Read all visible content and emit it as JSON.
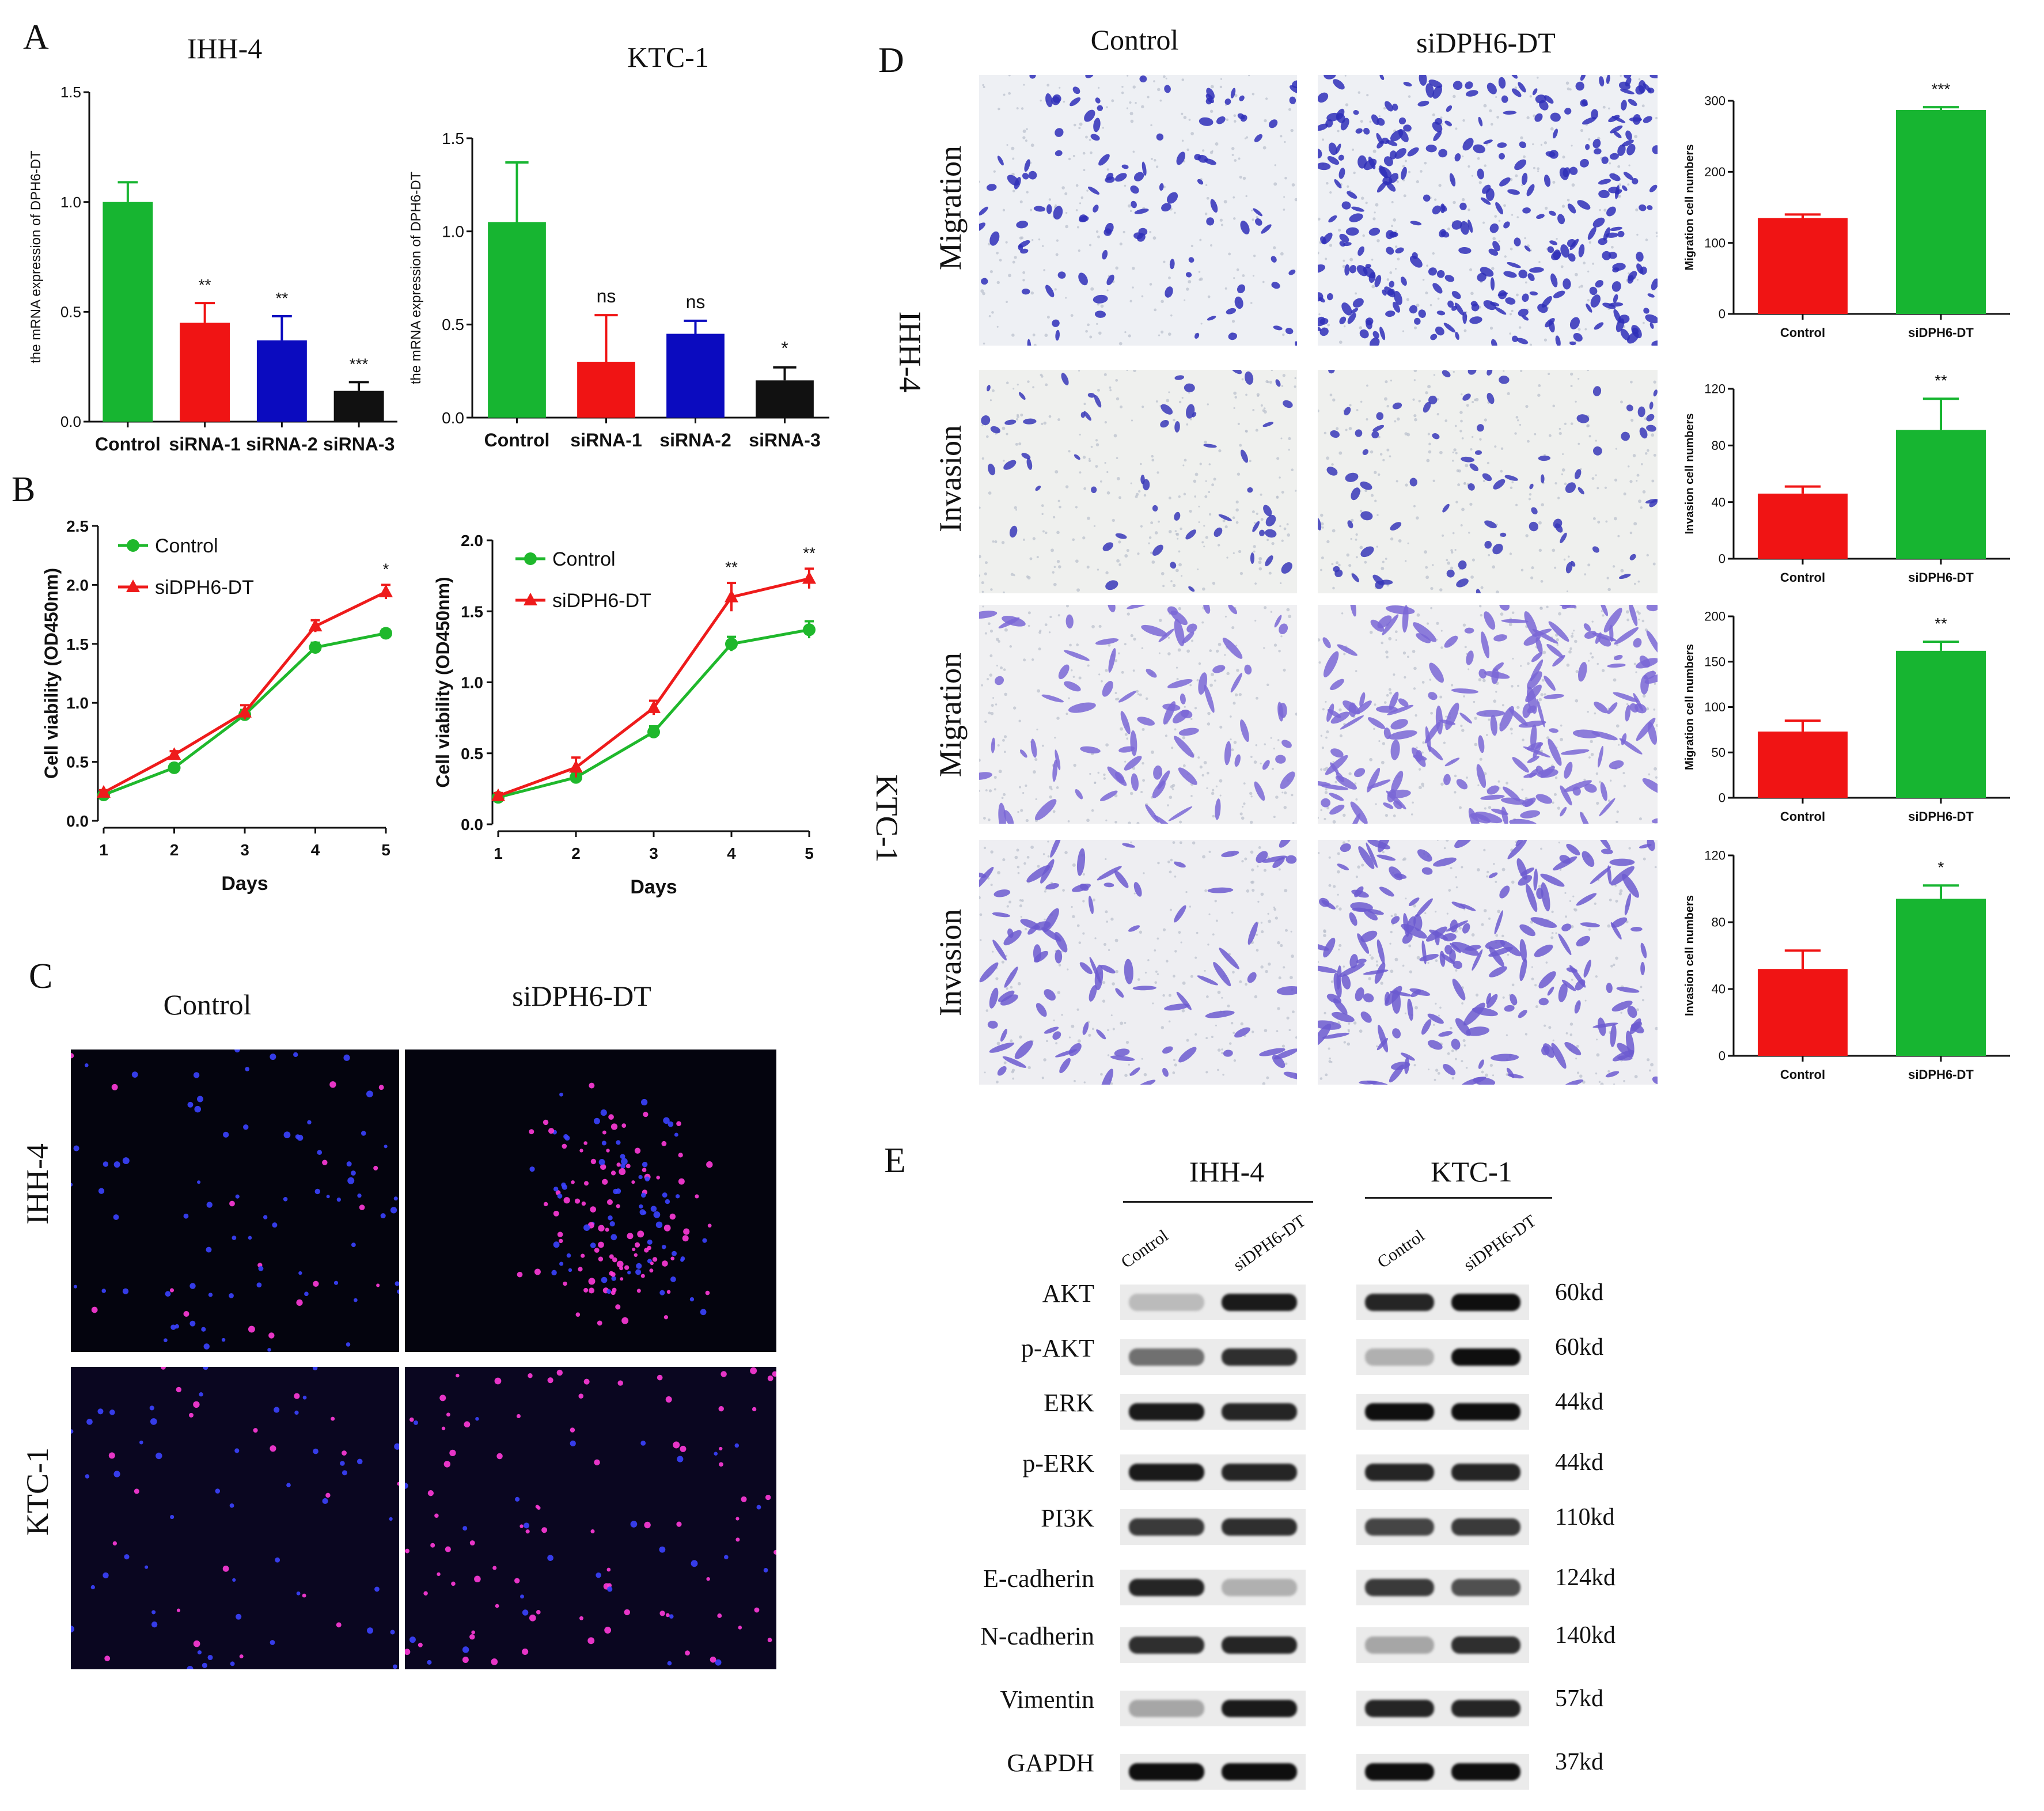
{
  "panel_letters": {
    "A": "A",
    "B": "B",
    "C": "C",
    "D": "D",
    "E": "E"
  },
  "colors": {
    "green": "#17b531",
    "red": "#f01414",
    "blue": "#0b0bbf",
    "black": "#111111",
    "line_green": "#1fb82c",
    "line_red": "#ee1b1b"
  },
  "panelA": {
    "left_title": "IHH-4",
    "right_title": "KTC-1"
  },
  "panelB": {
    "xlabel": "Days",
    "ylabel": "Cell viability (OD450nm)",
    "legend": [
      "Control",
      "siDPH6-DT"
    ]
  },
  "panelC": {
    "col_labels": [
      "Control",
      "siDPH6-DT"
    ],
    "row_labels": [
      "IHH-4",
      "KTC-1"
    ]
  },
  "panelD": {
    "col_labels": [
      "Control",
      "siDPH6-DT"
    ],
    "row_labels": [
      "Migration",
      "Invasion",
      "Migration",
      "Invasion"
    ],
    "cell_lines": [
      "IHH-4",
      "KTC-1"
    ]
  },
  "panelE": {
    "cell_lines": [
      "IHH-4",
      "KTC-1"
    ],
    "lanes": [
      "Control",
      "siDPH6-DT",
      "Control",
      "siDPH6-DT"
    ],
    "proteins": [
      {
        "name": "AKT",
        "kd": "60kd"
      },
      {
        "name": "p-AKT",
        "kd": "60kd"
      },
      {
        "name": "ERK",
        "kd": "44kd"
      },
      {
        "name": "p-ERK",
        "kd": "44kd"
      },
      {
        "name": "PI3K",
        "kd": "110kd"
      },
      {
        "name": "E-cadherin",
        "kd": "124kd"
      },
      {
        "name": "N-cadherin",
        "kd": "140kd"
      },
      {
        "name": "Vimentin",
        "kd": "57kd"
      },
      {
        "name": "GAPDH",
        "kd": "37kd"
      }
    ]
  },
  "chart_data": [
    {
      "id": "A-IHH-4",
      "type": "bar",
      "title": "IHH-4",
      "ylabel": "the mRNA expression of DPH6-DT",
      "categories": [
        "Control",
        "siRNA-1",
        "siRNA-2",
        "siRNA-3"
      ],
      "values": [
        1.0,
        0.45,
        0.37,
        0.14
      ],
      "errors": [
        0.09,
        0.09,
        0.11,
        0.04
      ],
      "annotations": [
        "",
        "**",
        "**",
        "***"
      ],
      "colors": [
        "#17b531",
        "#f01414",
        "#0b0bbf",
        "#111111"
      ],
      "ylim": [
        0,
        1.5
      ],
      "yticks": [
        "0.0",
        "0.5",
        "1.0",
        "1.5"
      ]
    },
    {
      "id": "A-KTC-1",
      "type": "bar",
      "title": "KTC-1",
      "ylabel": "the mRNA expression of DPH6-DT",
      "categories": [
        "Control",
        "siRNA-1",
        "siRNA-2",
        "siRNA-3"
      ],
      "values": [
        1.05,
        0.3,
        0.45,
        0.2
      ],
      "errors": [
        0.32,
        0.25,
        0.07,
        0.07
      ],
      "annotations": [
        "",
        "ns",
        "ns",
        "*"
      ],
      "colors": [
        "#17b531",
        "#f01414",
        "#0b0bbf",
        "#111111"
      ],
      "ylim": [
        0,
        1.5
      ],
      "yticks": [
        "0.0",
        "0.5",
        "1.0",
        "1.5"
      ]
    },
    {
      "id": "B-IHH-4",
      "type": "line",
      "xlabel": "Days",
      "ylabel": "Cell viability (OD450nm)",
      "x": [
        1,
        2,
        3,
        4,
        5
      ],
      "ylim": [
        0,
        2.5
      ],
      "yticks": [
        "0.0",
        "0.5",
        "1.0",
        "1.5",
        "2.0",
        "2.5"
      ],
      "series": [
        {
          "name": "Control",
          "values": [
            0.22,
            0.45,
            0.9,
            1.47,
            1.59
          ],
          "errors": [
            0.02,
            0.03,
            0.04,
            0.04,
            0.03
          ]
        },
        {
          "name": "siDPH6-DT",
          "values": [
            0.24,
            0.56,
            0.92,
            1.65,
            1.94
          ],
          "errors": [
            0.02,
            0.03,
            0.06,
            0.05,
            0.06
          ]
        }
      ],
      "annotations": [
        {
          "x": 5,
          "text": "*"
        }
      ]
    },
    {
      "id": "B-KTC-1",
      "type": "line",
      "xlabel": "Days",
      "ylabel": "Cell viability (OD450nm)",
      "x": [
        1,
        2,
        3,
        4,
        5
      ],
      "ylim": [
        0,
        2.0
      ],
      "yticks": [
        "0.0",
        "0.5",
        "1.0",
        "1.5",
        "2.0"
      ],
      "series": [
        {
          "name": "Control",
          "values": [
            0.19,
            0.33,
            0.65,
            1.27,
            1.37
          ],
          "errors": [
            0.02,
            0.03,
            0.04,
            0.05,
            0.06
          ]
        },
        {
          "name": "siDPH6-DT",
          "values": [
            0.2,
            0.4,
            0.82,
            1.6,
            1.73
          ],
          "errors": [
            0.02,
            0.07,
            0.05,
            0.1,
            0.07
          ]
        }
      ],
      "annotations": [
        {
          "x": 4,
          "text": "**"
        },
        {
          "x": 5,
          "text": "**"
        }
      ]
    },
    {
      "id": "D-1",
      "type": "bar",
      "ylabel": "Migration cell numbers",
      "categories": [
        "Control",
        "siDPH6-DT"
      ],
      "values": [
        135,
        287
      ],
      "errors": [
        5,
        4
      ],
      "annotations": [
        "",
        "***"
      ],
      "colors": [
        "#f01414",
        "#17b531"
      ],
      "ylim": [
        0,
        300
      ],
      "yticks": [
        "0",
        "100",
        "200",
        "300"
      ]
    },
    {
      "id": "D-2",
      "type": "bar",
      "ylabel": "Invasion cell numbers",
      "categories": [
        "Control",
        "siDPH6-DT"
      ],
      "values": [
        46,
        91
      ],
      "errors": [
        5,
        22
      ],
      "annotations": [
        "",
        "**"
      ],
      "colors": [
        "#f01414",
        "#17b531"
      ],
      "ylim": [
        0,
        120
      ],
      "yticks": [
        "0",
        "40",
        "80",
        "120"
      ]
    },
    {
      "id": "D-3",
      "type": "bar",
      "ylabel": "Migration cell numbers",
      "categories": [
        "Control",
        "siDPH6-DT"
      ],
      "values": [
        73,
        162
      ],
      "errors": [
        12,
        10
      ],
      "annotations": [
        "",
        "**"
      ],
      "colors": [
        "#f01414",
        "#17b531"
      ],
      "ylim": [
        0,
        200
      ],
      "yticks": [
        "0",
        "50",
        "100",
        "150",
        "200"
      ]
    },
    {
      "id": "D-4",
      "type": "bar",
      "ylabel": "Invasion cell numbers",
      "categories": [
        "Control",
        "siDPH6-DT"
      ],
      "values": [
        52,
        94
      ],
      "errors": [
        11,
        8
      ],
      "annotations": [
        "",
        "*"
      ],
      "colors": [
        "#f01414",
        "#17b531"
      ],
      "ylim": [
        0,
        120
      ],
      "yticks": [
        "0",
        "40",
        "80",
        "120"
      ]
    }
  ]
}
